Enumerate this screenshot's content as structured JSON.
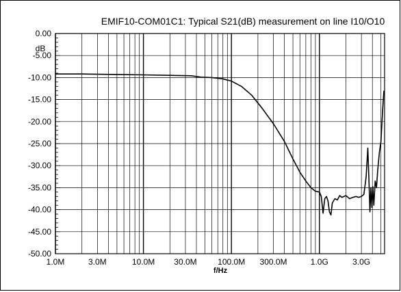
{
  "chart_data": {
    "type": "line",
    "title": "EMIF10-COM01C1: Typical S21(dB) measurement on line I10/O10",
    "xlabel": "f/Hz",
    "ylabel": "dB",
    "x_scale": "log",
    "xlim": [
      1000000,
      5500000000
    ],
    "ylim": [
      -50,
      0
    ],
    "grid": true,
    "legend": "none",
    "x_tick_labels": [
      "1.0M",
      "3.0M",
      "10.0M",
      "30.0M",
      "100.0M",
      "300.0M",
      "1.0G",
      "3.0G"
    ],
    "x_tick_values": [
      1000000,
      3000000,
      10000000,
      30000000,
      100000000,
      300000000,
      1000000000,
      3000000000
    ],
    "y_tick_labels": [
      "0.00",
      "-5.00",
      "-10.00",
      "-15.00",
      "-20.00",
      "-25.00",
      "-30.00",
      "-35.00",
      "-40.00",
      "-45.00",
      "-50.00"
    ],
    "y_tick_values": [
      0,
      -5,
      -10,
      -15,
      -20,
      -25,
      -30,
      -35,
      -40,
      -45,
      -50
    ],
    "series": [
      {
        "color": "#000000",
        "x": [
          1000000,
          2000000,
          5000000,
          10000000,
          20000000,
          35000000,
          45000000,
          60000000,
          80000000,
          100000000,
          130000000,
          170000000,
          220000000,
          300000000,
          400000000,
          500000000,
          600000000,
          700000000,
          800000000,
          900000000,
          1000000000,
          1050000000,
          1100000000,
          1150000000,
          1200000000,
          1250000000,
          1300000000,
          1350000000,
          1400000000,
          1500000000,
          1600000000,
          1700000000,
          1800000000,
          2000000000,
          2200000000,
          2400000000,
          2600000000,
          2800000000,
          3000000000,
          3200000000,
          3400000000,
          3550000000,
          3650000000,
          3750000000,
          3850000000,
          3950000000,
          4050000000,
          4150000000,
          4300000000,
          4450000000,
          4600000000,
          4800000000,
          5000000000,
          5200000000,
          5400000000
        ],
        "y": [
          -9.2,
          -9.2,
          -9.3,
          -9.4,
          -9.5,
          -9.6,
          -9.9,
          -10.0,
          -10.3,
          -10.8,
          -12.0,
          -14.0,
          -16.8,
          -20.5,
          -24.5,
          -28.5,
          -31.5,
          -33.5,
          -35.0,
          -35.8,
          -36.0,
          -37.0,
          -40.8,
          -37.5,
          -37.0,
          -38.0,
          -40.5,
          -41.2,
          -38.5,
          -37.5,
          -37.8,
          -36.8,
          -37.2,
          -36.8,
          -37.5,
          -37.2,
          -37.0,
          -37.2,
          -37.0,
          -36.5,
          -32.5,
          -26.0,
          -33.0,
          -40.5,
          -35.0,
          -39.5,
          -34.8,
          -39.0,
          -33.5,
          -35.0,
          -31.0,
          -27.0,
          -24.5,
          -18.0,
          -13.0
        ]
      }
    ]
  }
}
